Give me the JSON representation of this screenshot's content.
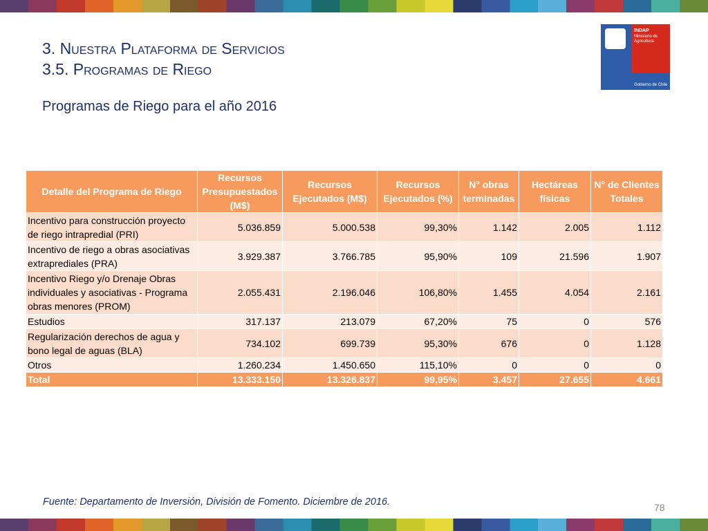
{
  "header": {
    "title": "3. Nuestra Plataforma de Servicios",
    "subtitle": "3.5. Programas de Riego"
  },
  "heading": "Programas de Riego para el año 2016",
  "logo": {
    "name": "INDAP",
    "ministry": "Ministerio de Agricultura",
    "government": "Gobierno de Chile"
  },
  "table": {
    "columns": [
      "Detalle del Programa de Riego",
      "Recursos Presupuestados (M$)",
      "Recursos Ejecutados (M$)",
      "Recursos Ejecutados (%)",
      "N° obras terminadas",
      "Hectáreas físicas",
      "N° de Clientes Totales"
    ],
    "rows": [
      [
        "Incentivo para construcción proyecto de riego intrapredial (PRI)",
        "5.036.859",
        "5.000.538",
        "99,30%",
        "1.142",
        "2.005",
        "1.112"
      ],
      [
        "Incentivo de riego a obras asociativas extraprediales (PRA)",
        "3.929.387",
        "3.766.785",
        "95,90%",
        "109",
        "21.596",
        "1.907"
      ],
      [
        "Incentivo Riego y/o Drenaje Obras individuales y asociativas - Programa obras menores (PROM)",
        "2.055.431",
        "2.196.046",
        "106,80%",
        "1.455",
        "4.054",
        "2.161"
      ],
      [
        "Estudios",
        "317.137",
        "213.079",
        "67,20%",
        "75",
        "0",
        "576"
      ],
      [
        "Regularización derechos de agua y bono legal de aguas (BLA)",
        "734.102",
        "699.739",
        "95,30%",
        "676",
        "0",
        "1.128"
      ],
      [
        "Otros",
        "1.260.234",
        "1.450.650",
        "115,10%",
        "0",
        "0",
        "0"
      ],
      [
        "Total",
        "13.333.150",
        "13.326.837",
        "99,95%",
        "3.457",
        "27.655",
        "4.661"
      ]
    ]
  },
  "footer": {
    "source": "Fuente: Departamento de Inversión, División de Fomento. Diciembre de 2016.",
    "page": "78"
  }
}
